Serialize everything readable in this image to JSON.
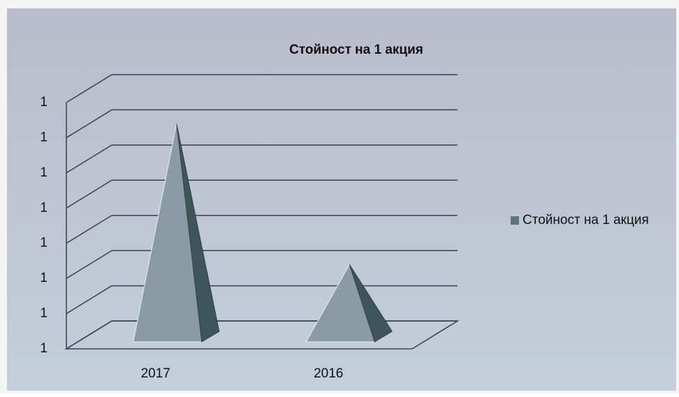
{
  "chart_data": {
    "type": "pyramid3d",
    "title": "Стойност на 1 акция",
    "categories": [
      "2017",
      "2016"
    ],
    "series": [
      {
        "name": "Стойност на 1 акция",
        "color": "#8b9ba6",
        "values": [
          1.12,
          1.04
        ]
      }
    ],
    "ylim": [
      1,
      1.14
    ],
    "yticks": [
      {
        "value": 1,
        "label": "1"
      },
      {
        "value": 1.02,
        "label": "1"
      },
      {
        "value": 1.04,
        "label": "1"
      },
      {
        "value": 1.06,
        "label": "1"
      },
      {
        "value": 1.08,
        "label": "1"
      },
      {
        "value": 1.1,
        "label": "1"
      },
      {
        "value": 1.12,
        "label": "1"
      },
      {
        "value": 1.14,
        "label": "1"
      }
    ],
    "grid": true,
    "legend": "right"
  }
}
